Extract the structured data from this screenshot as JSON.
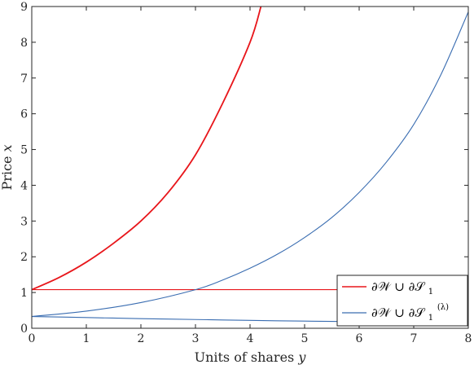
{
  "chart_data": {
    "type": "line",
    "title": "",
    "xlabel": "Units of shares",
    "xlabel_var": "y",
    "ylabel": "Price",
    "ylabel_var": "x",
    "xlim": [
      0,
      8
    ],
    "ylim": [
      0,
      9
    ],
    "x_ticks": [
      "0",
      "1",
      "2",
      "3",
      "4",
      "5",
      "6",
      "7",
      "8"
    ],
    "y_ticks": [
      "0",
      "1",
      "2",
      "3",
      "4",
      "5",
      "6",
      "7",
      "8",
      "9"
    ],
    "grid": false,
    "legend_position": "bottom-right",
    "legend": [
      {
        "label": "∂𝒲 ∪ ∂𝒮",
        "subscript": "1",
        "superscript": "",
        "color": "#e8161b"
      },
      {
        "label": "∂𝒲 ∪ ∂𝒮",
        "subscript": "1",
        "superscript": "(λ)",
        "color": "#3a6db1"
      }
    ],
    "series": [
      {
        "color": "#e8161b",
        "style": "thick",
        "x": [
          0,
          0.5,
          1,
          1.5,
          2,
          2.5,
          3,
          3.5,
          4,
          4.2
        ],
        "y": [
          1.08,
          1.42,
          1.85,
          2.38,
          3.0,
          3.8,
          4.85,
          6.3,
          8.0,
          9.0
        ]
      },
      {
        "color": "#e8161b",
        "style": "thin",
        "x": [
          0,
          8
        ],
        "y": [
          1.08,
          1.08
        ]
      },
      {
        "color": "#3a6db1",
        "style": "thin",
        "x": [
          0,
          1,
          2,
          3,
          3.5,
          4,
          4.5,
          5,
          5.5,
          6,
          6.5,
          7,
          7.5,
          8
        ],
        "y": [
          0.33,
          0.48,
          0.72,
          1.08,
          1.35,
          1.68,
          2.07,
          2.54,
          3.1,
          3.8,
          4.65,
          5.7,
          7.1,
          8.85
        ]
      },
      {
        "color": "#3a6db1",
        "style": "thin",
        "x": [
          0,
          1,
          2,
          3,
          4,
          5,
          6,
          7,
          8
        ],
        "y": [
          0.33,
          0.3,
          0.27,
          0.245,
          0.22,
          0.2,
          0.185,
          0.17,
          0.155
        ]
      }
    ]
  }
}
